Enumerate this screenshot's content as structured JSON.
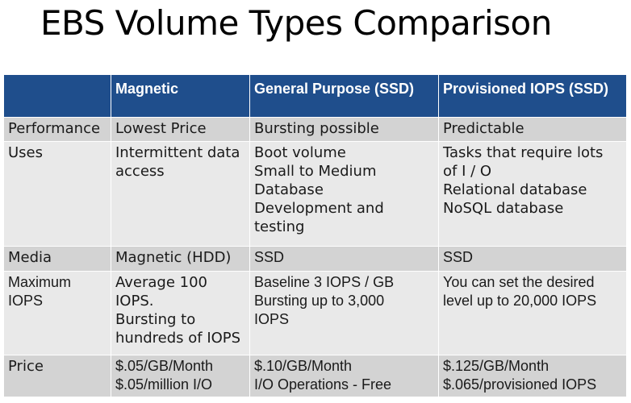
{
  "title": "EBS Volume Types Comparison",
  "table": {
    "headers": [
      "",
      "Magnetic",
      "General Purpose (SSD)",
      "Provisioned IOPS (SSD)"
    ],
    "rows": [
      {
        "label": [
          "Performance"
        ],
        "cells": [
          [
            "Lowest Price"
          ],
          [
            "Bursting possible"
          ],
          [
            "Predictable"
          ]
        ]
      },
      {
        "label": [
          "Uses"
        ],
        "cells": [
          [
            "Intermittent data",
            "access"
          ],
          [
            "Boot volume",
            "Small to Medium",
            "Database",
            "Development and",
            "testing"
          ],
          [
            "Tasks that require lots",
            "of I / O",
            "Relational database",
            "NoSQL database"
          ]
        ]
      },
      {
        "label": [
          "Media"
        ],
        "cells": [
          [
            "Magnetic (HDD)"
          ],
          [
            "SSD"
          ],
          [
            "SSD"
          ]
        ]
      },
      {
        "label": [
          "Maximum",
          "IOPS"
        ],
        "cells": [
          [
            "Average 100",
            "IOPS.",
            "Bursting to",
            "hundreds of IOPS"
          ],
          [
            "Baseline 3 IOPS / GB",
            "Bursting up to 3,000",
            "IOPS"
          ],
          [
            "You can set the desired",
            "level up to 20,000 IOPS"
          ]
        ]
      },
      {
        "label": [
          "Price"
        ],
        "cells": [
          [
            "$.05/GB/Month",
            "$.05/million I/O"
          ],
          [
            "$.10/GB/Month",
            "I/O Operations - Free"
          ],
          [
            "$.125/GB/Month",
            "$.065/provisioned IOPS"
          ]
        ]
      }
    ]
  }
}
